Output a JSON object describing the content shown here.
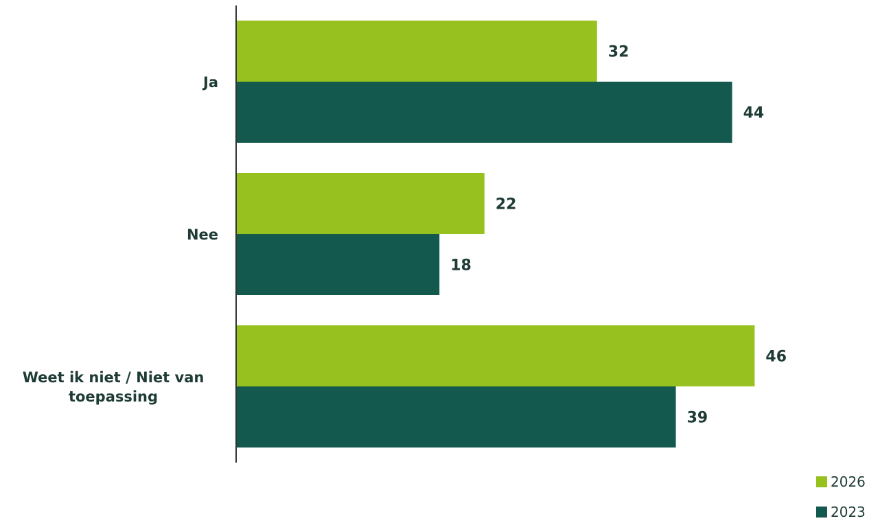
{
  "chart_data": {
    "type": "bar",
    "orientation": "horizontal",
    "categories": [
      "Ja",
      "Nee",
      "Weet ik niet / Niet van toepassing"
    ],
    "series": [
      {
        "name": "2026",
        "values": [
          32,
          22,
          46
        ],
        "color": "#97c11f"
      },
      {
        "name": "2023",
        "values": [
          44,
          18,
          39
        ],
        "color": "#13594d"
      }
    ],
    "xlim": [
      0,
      50
    ],
    "grid": false,
    "legend_position": "bottom-right",
    "title": "",
    "xlabel": "",
    "ylabel": ""
  },
  "colors": {
    "label_text": "#1e3b36",
    "axis": "#333333"
  }
}
